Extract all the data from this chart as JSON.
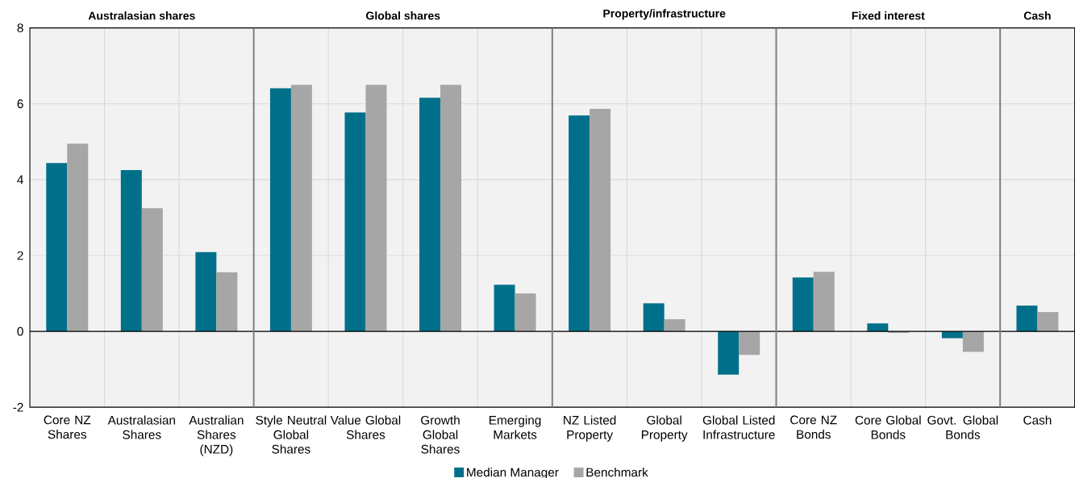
{
  "chart_data": {
    "type": "bar",
    "categories": [
      "Core NZ Shares",
      "Australasian Shares",
      "Australian Shares (NZD)",
      "Style Neutral Global Shares",
      "Value Global Shares",
      "Growth Global Shares",
      "Emerging Markets",
      "NZ Listed Property",
      "Global Property",
      "Global Listed Infrastructure",
      "Core NZ Bonds",
      "Core Global Bonds",
      "Govt. Global Bonds",
      "Cash"
    ],
    "series": [
      {
        "name": "Median Manager",
        "color": "#00708a",
        "values": [
          4.44,
          4.25,
          2.09,
          6.41,
          5.77,
          6.16,
          1.23,
          5.69,
          0.74,
          -1.14,
          1.42,
          0.21,
          -0.18,
          0.68
        ]
      },
      {
        "name": "Benchmark",
        "color": "#a6a6a6",
        "values": [
          4.95,
          3.25,
          1.56,
          6.5,
          6.5,
          6.5,
          1.0,
          5.87,
          0.32,
          -0.62,
          1.57,
          -0.04,
          -0.54,
          0.51
        ]
      }
    ],
    "annotations": [
      "Australasian shares",
      "Global  shares",
      "Property/infrastructure",
      "Fixed interest",
      "Cash"
    ],
    "ylim": [
      -2,
      8
    ],
    "yticks": [
      -2,
      0,
      2,
      4,
      6,
      8
    ],
    "grid": true,
    "legend": "bottom"
  }
}
